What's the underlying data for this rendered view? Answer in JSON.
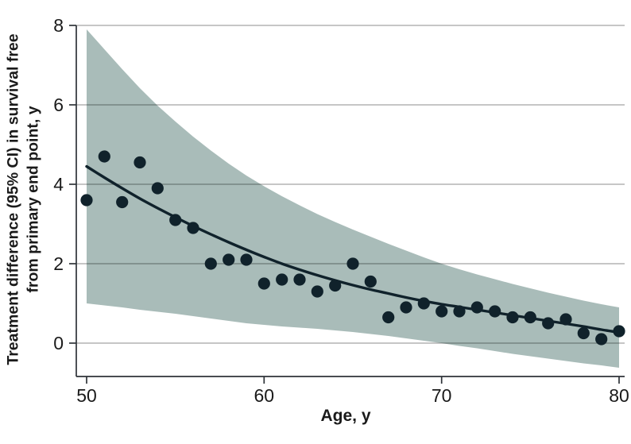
{
  "chart_data": {
    "type": "scatter",
    "title": "",
    "xlabel": "Age, y",
    "ylabel_lines": [
      "Treatment difference (95% CI) in survival free",
      "from primary end point, y"
    ],
    "x_ticks": [
      50,
      60,
      70,
      80
    ],
    "y_ticks": [
      0,
      2,
      4,
      6,
      8
    ],
    "xlim": [
      50,
      80
    ],
    "ylim": [
      -0.85,
      8
    ],
    "grid": "horizontal",
    "legend": "none",
    "ages": [
      50,
      51,
      52,
      53,
      54,
      55,
      56,
      57,
      58,
      59,
      60,
      61,
      62,
      63,
      64,
      65,
      66,
      67,
      68,
      69,
      70,
      71,
      72,
      73,
      74,
      75,
      76,
      77,
      78,
      79,
      80
    ],
    "points": [
      3.6,
      4.7,
      3.55,
      4.55,
      3.9,
      3.1,
      2.9,
      2.0,
      2.1,
      2.1,
      1.5,
      1.6,
      1.6,
      1.3,
      1.45,
      2.0,
      1.55,
      0.65,
      0.9,
      1.0,
      0.8,
      0.8,
      0.9,
      0.8,
      0.65,
      0.65,
      0.5,
      0.6,
      0.25,
      0.1,
      0.3
    ],
    "trend": [
      4.45,
      4.17,
      3.9,
      3.64,
      3.4,
      3.17,
      2.95,
      2.74,
      2.54,
      2.35,
      2.17,
      2.0,
      1.85,
      1.71,
      1.58,
      1.46,
      1.35,
      1.25,
      1.15,
      1.06,
      0.98,
      0.91,
      0.84,
      0.77,
      0.7,
      0.63,
      0.56,
      0.49,
      0.42,
      0.34,
      0.27
    ],
    "ci_upper": [
      7.9,
      7.4,
      6.9,
      6.42,
      5.98,
      5.58,
      5.2,
      4.85,
      4.52,
      4.22,
      3.95,
      3.7,
      3.47,
      3.25,
      3.05,
      2.86,
      2.68,
      2.5,
      2.33,
      2.16,
      2.0,
      1.86,
      1.73,
      1.61,
      1.49,
      1.38,
      1.27,
      1.17,
      1.07,
      0.98,
      0.9
    ],
    "ci_lower": [
      1.0,
      0.95,
      0.9,
      0.84,
      0.79,
      0.74,
      0.68,
      0.62,
      0.56,
      0.5,
      0.46,
      0.42,
      0.39,
      0.36,
      0.32,
      0.28,
      0.23,
      0.18,
      0.12,
      0.06,
      0.0,
      -0.07,
      -0.13,
      -0.2,
      -0.27,
      -0.33,
      -0.39,
      -0.45,
      -0.51,
      -0.56,
      -0.62
    ],
    "colors": {
      "band": "#a9bcb9",
      "marker": "#10222b",
      "trend": "#10222b",
      "grid_rgba": "rgba(0,0,0,0.30)",
      "axis": "#2e3338",
      "text": "#1a1a1a"
    }
  }
}
